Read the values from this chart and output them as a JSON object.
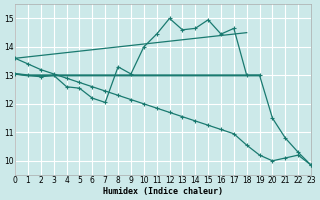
{
  "xlabel": "Humidex (Indice chaleur)",
  "xlim": [
    0,
    23
  ],
  "ylim": [
    9.5,
    15.5
  ],
  "yticks": [
    10,
    11,
    12,
    13,
    14,
    15
  ],
  "xticks": [
    0,
    1,
    2,
    3,
    4,
    5,
    6,
    7,
    8,
    9,
    10,
    11,
    12,
    13,
    14,
    15,
    16,
    17,
    18,
    19,
    20,
    21,
    22,
    23
  ],
  "bg_color": "#cce9e9",
  "line_color": "#1a7a70",
  "grid_color": "#ffffff",
  "line_rising_x": [
    0,
    1,
    2,
    3,
    4,
    5,
    6,
    7,
    8,
    9,
    10,
    11,
    12,
    13,
    14,
    15,
    16,
    17,
    18
  ],
  "line_rising_y": [
    13.6,
    13.65,
    13.7,
    13.75,
    13.8,
    13.85,
    13.9,
    13.95,
    14.0,
    14.05,
    14.1,
    14.15,
    14.2,
    14.25,
    14.3,
    14.35,
    14.4,
    14.45,
    14.5
  ],
  "line_wavy_x": [
    0,
    1,
    2,
    3,
    4,
    5,
    6,
    7,
    8,
    9,
    10,
    11,
    12,
    13,
    14,
    15,
    16,
    17,
    18,
    19,
    20,
    21,
    22,
    23
  ],
  "line_wavy_y": [
    13.05,
    13.0,
    12.95,
    13.0,
    12.6,
    12.55,
    12.2,
    12.05,
    13.3,
    13.05,
    14.0,
    14.45,
    15.0,
    14.6,
    14.65,
    14.95,
    14.45,
    14.65,
    13.0,
    13.0,
    11.5,
    10.8,
    10.3,
    9.85
  ],
  "line_flat_x": [
    0,
    1,
    2,
    3,
    4,
    5,
    6,
    7,
    8,
    9,
    10,
    11,
    12,
    13,
    14,
    15,
    16,
    17,
    18,
    19
  ],
  "line_flat_y": [
    13.05,
    13.0,
    13.0,
    13.0,
    13.0,
    13.0,
    13.0,
    13.0,
    13.0,
    13.0,
    13.0,
    13.0,
    13.0,
    13.0,
    13.0,
    13.0,
    13.0,
    13.0,
    13.0,
    13.0
  ],
  "line_decline_x": [
    0,
    1,
    2,
    3,
    4,
    5,
    6,
    7,
    8,
    9,
    10,
    11,
    12,
    13,
    14,
    15,
    16,
    17,
    18,
    19,
    20,
    21,
    22,
    23
  ],
  "line_decline_y": [
    13.6,
    13.4,
    13.2,
    13.05,
    12.9,
    12.75,
    12.6,
    12.45,
    12.3,
    12.15,
    12.0,
    11.85,
    11.7,
    11.55,
    11.4,
    11.25,
    11.1,
    10.95,
    10.55,
    10.2,
    10.0,
    10.1,
    10.2,
    9.85
  ]
}
